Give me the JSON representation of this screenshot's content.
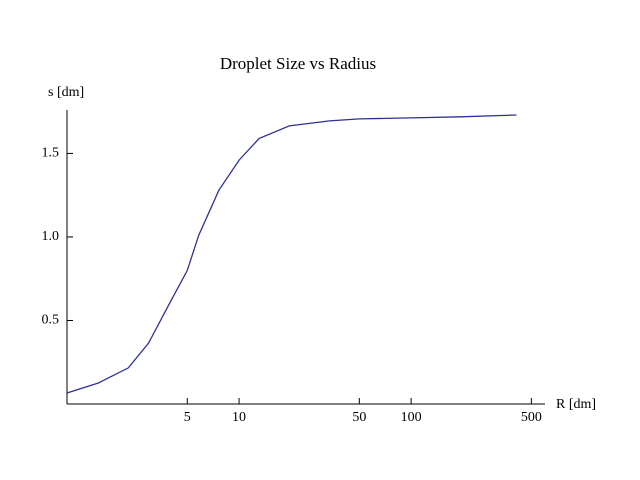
{
  "chart_data": {
    "type": "line",
    "title": "Droplet Size vs Radius",
    "x_label": "R [dm]",
    "y_label": "s [dm]",
    "xscale": "log",
    "xlim": [
      1,
      600
    ],
    "xticks": [
      5,
      10,
      50,
      100,
      500
    ],
    "ylim": [
      0,
      1.76
    ],
    "yticks": [
      0.5,
      {
        "value": 1.0,
        "label": "1.0"
      },
      1.5
    ],
    "x": [
      1,
      1.52,
      2.27,
      2.98,
      3.9,
      5,
      5.83,
      7.64,
      10,
      13.1,
      19.6,
      33.6,
      50,
      100,
      194,
      410
    ],
    "series": [
      {
        "color": "#2e3192",
        "values": [
          0.066,
          0.126,
          0.216,
          0.365,
          0.593,
          0.8,
          1.01,
          1.28,
          1.46,
          1.59,
          1.665,
          1.695,
          1.707,
          1.713,
          1.719,
          1.73
        ]
      }
    ]
  }
}
